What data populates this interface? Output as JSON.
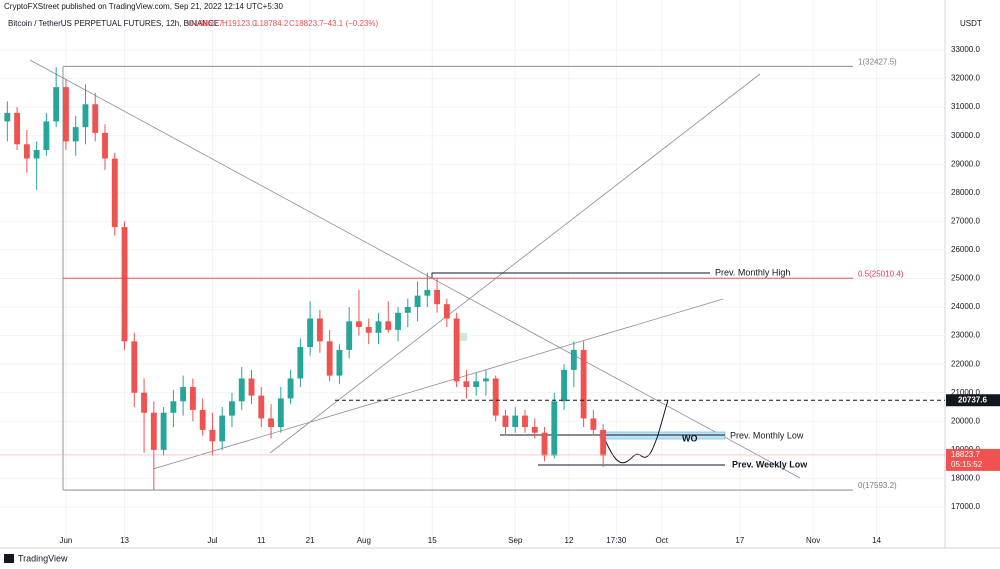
{
  "published": "CryptoFXStreet published on TradingView.com, Sep 21, 2022 12:14 UTC+5:30",
  "footer": "TradingView",
  "chart_data": {
    "type": "candlestick",
    "title": "Bitcoin / TetherUS PERPETUAL FUTURES, 12h, BINANCE",
    "ohlc_text": [
      "O18866.7",
      "H19123.0",
      "L18784.2",
      "C18823.7",
      "−43.1 (−0.23%)"
    ],
    "currency": "USDT",
    "up_color": "#26a69a",
    "down_color": "#ef5350",
    "x": [
      -12,
      -10,
      -8,
      -6,
      -4,
      -2,
      0,
      2,
      4,
      6,
      8,
      10,
      12,
      14,
      16,
      18,
      20,
      22,
      24,
      26,
      28,
      30,
      32,
      34,
      36,
      38,
      40,
      42,
      44,
      46,
      48,
      50,
      52,
      54,
      56,
      58,
      60,
      62,
      64,
      66,
      68,
      70,
      72,
      74,
      76,
      78,
      80,
      82,
      84,
      86,
      88,
      90,
      92,
      94,
      96,
      98,
      100,
      102,
      104,
      106,
      108,
      110
    ],
    "open": [
      30500,
      30800,
      29700,
      29200,
      29500,
      30500,
      31700,
      29800,
      30300,
      31100,
      30100,
      29200,
      26800,
      22800,
      21000,
      20300,
      19000,
      20300,
      20700,
      21200,
      20400,
      19700,
      19300,
      20200,
      20700,
      21500,
      20900,
      20100,
      19800,
      20800,
      21500,
      22600,
      23600,
      22800,
      21600,
      22500,
      23500,
      23300,
      23100,
      23500,
      23200,
      23800,
      24000,
      24400,
      24600,
      24100,
      23600,
      21400,
      21200,
      21400,
      21500,
      20200,
      19800,
      20200,
      19800,
      19600,
      18800,
      20700,
      21800,
      22500,
      20100,
      19700
    ],
    "high": [
      31200,
      31000,
      30200,
      29800,
      30800,
      32400,
      32000,
      30700,
      31800,
      31500,
      30400,
      29400,
      27000,
      23100,
      21500,
      20700,
      20500,
      21100,
      21600,
      21500,
      20800,
      20300,
      20500,
      21000,
      21900,
      21800,
      21200,
      20600,
      21200,
      21800,
      22900,
      24200,
      23900,
      23200,
      22700,
      24000,
      24600,
      23600,
      23800,
      24200,
      24000,
      24300,
      24900,
      25200,
      25000,
      24300,
      23800,
      21800,
      21700,
      21800,
      21600,
      20400,
      20500,
      20400,
      20100,
      19800,
      21000,
      22000,
      22800,
      22800,
      20400,
      19900
    ],
    "low": [
      29800,
      29500,
      28700,
      28100,
      29300,
      30300,
      29500,
      29300,
      29700,
      29800,
      28800,
      26500,
      22500,
      20500,
      18900,
      17600,
      18800,
      19800,
      20200,
      20000,
      19500,
      18800,
      19000,
      19800,
      20400,
      20600,
      19800,
      19400,
      19600,
      20600,
      21200,
      22300,
      22400,
      21400,
      21300,
      22200,
      23000,
      22700,
      22700,
      23100,
      22800,
      23300,
      23500,
      24000,
      23800,
      23300,
      21200,
      20800,
      20900,
      20900,
      20000,
      19500,
      19600,
      19600,
      19400,
      18600,
      18700,
      20400,
      21200,
      19800,
      19500,
      18400
    ],
    "close": [
      30800,
      29700,
      29200,
      29500,
      30500,
      31700,
      29800,
      30300,
      31100,
      30100,
      29200,
      26800,
      22800,
      21000,
      20300,
      19000,
      20300,
      20700,
      21200,
      20400,
      19700,
      19300,
      20200,
      20700,
      21500,
      20900,
      20100,
      19800,
      20800,
      21500,
      22600,
      23600,
      22800,
      21600,
      22500,
      23500,
      23300,
      23100,
      23500,
      23200,
      23800,
      24000,
      24400,
      24600,
      24100,
      23600,
      21400,
      21200,
      21400,
      21500,
      20200,
      19800,
      20200,
      19800,
      19600,
      18800,
      20700,
      21800,
      22500,
      20100,
      19700,
      18800
    ],
    "xlim": [
      -13.5,
      180
    ],
    "xticks": [
      {
        "value": 0,
        "label": "Jun"
      },
      {
        "value": 12,
        "label": "13"
      },
      {
        "value": 30,
        "label": "Jul"
      },
      {
        "value": 40,
        "label": "11"
      },
      {
        "value": 50,
        "label": "21"
      },
      {
        "value": 61,
        "label": "Aug"
      },
      {
        "value": 75,
        "label": "15"
      },
      {
        "value": 92,
        "label": "Sep"
      },
      {
        "value": 103,
        "label": "12"
      },
      {
        "value": 112.7,
        "label": "17:30"
      },
      {
        "value": 122,
        "label": "Oct"
      },
      {
        "value": 138,
        "label": "17"
      },
      {
        "value": 153,
        "label": "Nov"
      },
      {
        "value": 166,
        "label": "14"
      }
    ],
    "ylim": [
      15564,
      34751
    ],
    "yticks": [
      {
        "value": 17000,
        "label": "17000.0"
      },
      {
        "value": 18000,
        "label": "18000.0"
      },
      {
        "value": 19000,
        "label": "19000.0"
      },
      {
        "value": 20000,
        "label": "20000.0"
      },
      {
        "value": 21000,
        "label": "21000.0"
      },
      {
        "value": 22000,
        "label": "22000.0"
      },
      {
        "value": 23000,
        "label": "23000.0"
      },
      {
        "value": 24000,
        "label": "24000.0"
      },
      {
        "value": 25000,
        "label": "25000.0"
      },
      {
        "value": 26000,
        "label": "26000.0"
      },
      {
        "value": 27000,
        "label": "27000.0"
      },
      {
        "value": 28000,
        "label": "28000.0"
      },
      {
        "value": 29000,
        "label": "29000.0"
      },
      {
        "value": 30000,
        "label": "30000.0"
      },
      {
        "value": 31000,
        "label": "31000.0"
      },
      {
        "value": 32000,
        "label": "32000.0"
      },
      {
        "value": 33000,
        "label": "33000.0"
      }
    ],
    "fib_levels": [
      {
        "value": 32427.5,
        "label": "1(32427.5)"
      },
      {
        "value": 25010.4,
        "label": "0.5(25010.4)"
      },
      {
        "value": 17593.2,
        "label": "0(17593.2)"
      }
    ],
    "fib_colors": [
      "#787b86",
      "#f23645",
      "#787b86"
    ],
    "marked_level": 20737.6,
    "last_price": 18823.7,
    "countdown": "05:15:52",
    "annotations": [
      "Prev. Monthly High",
      "Prev. Monthly Low",
      "Prev. Weekly Low",
      "WO"
    ]
  }
}
